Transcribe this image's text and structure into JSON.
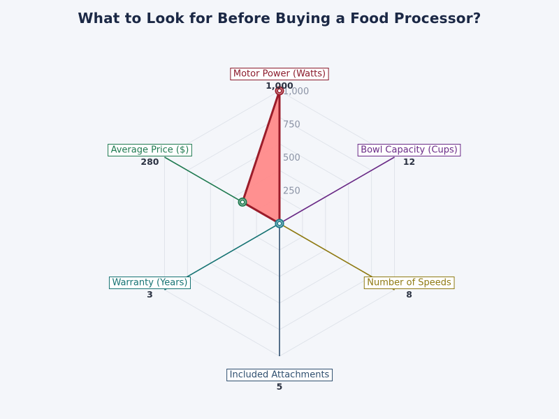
{
  "chart_data": {
    "type": "radar",
    "title": "What to Look for Before Buying a Food Processor?",
    "axes": [
      {
        "label": "Motor Power (Watts)",
        "value_label": "1,000",
        "value": 1000,
        "color": "#8b1a2b"
      },
      {
        "label": "Bowl Capacity (Cups)",
        "value_label": "12",
        "value": 12,
        "color": "#6a2a86"
      },
      {
        "label": "Number of Speeds",
        "value_label": "8",
        "value": 8,
        "color": "#8f7a12"
      },
      {
        "label": "Included Attachments",
        "value_label": "5",
        "value": 5,
        "color": "#2f4f6f"
      },
      {
        "label": "Warranty (Years)",
        "value_label": "3",
        "value": 3,
        "color": "#167373"
      },
      {
        "label": "Average Price ($)",
        "value_label": "280",
        "value": 280,
        "color": "#1f7a50"
      }
    ],
    "radial_range": [
      0,
      1000
    ],
    "radial_ticks": [
      250,
      500,
      750,
      1000
    ],
    "radial_tick_labels": [
      "250",
      "500",
      "750",
      "1,000"
    ],
    "fill_color": "#ff8a8a",
    "outline_color": "#9b1c2a",
    "grid": true
  }
}
